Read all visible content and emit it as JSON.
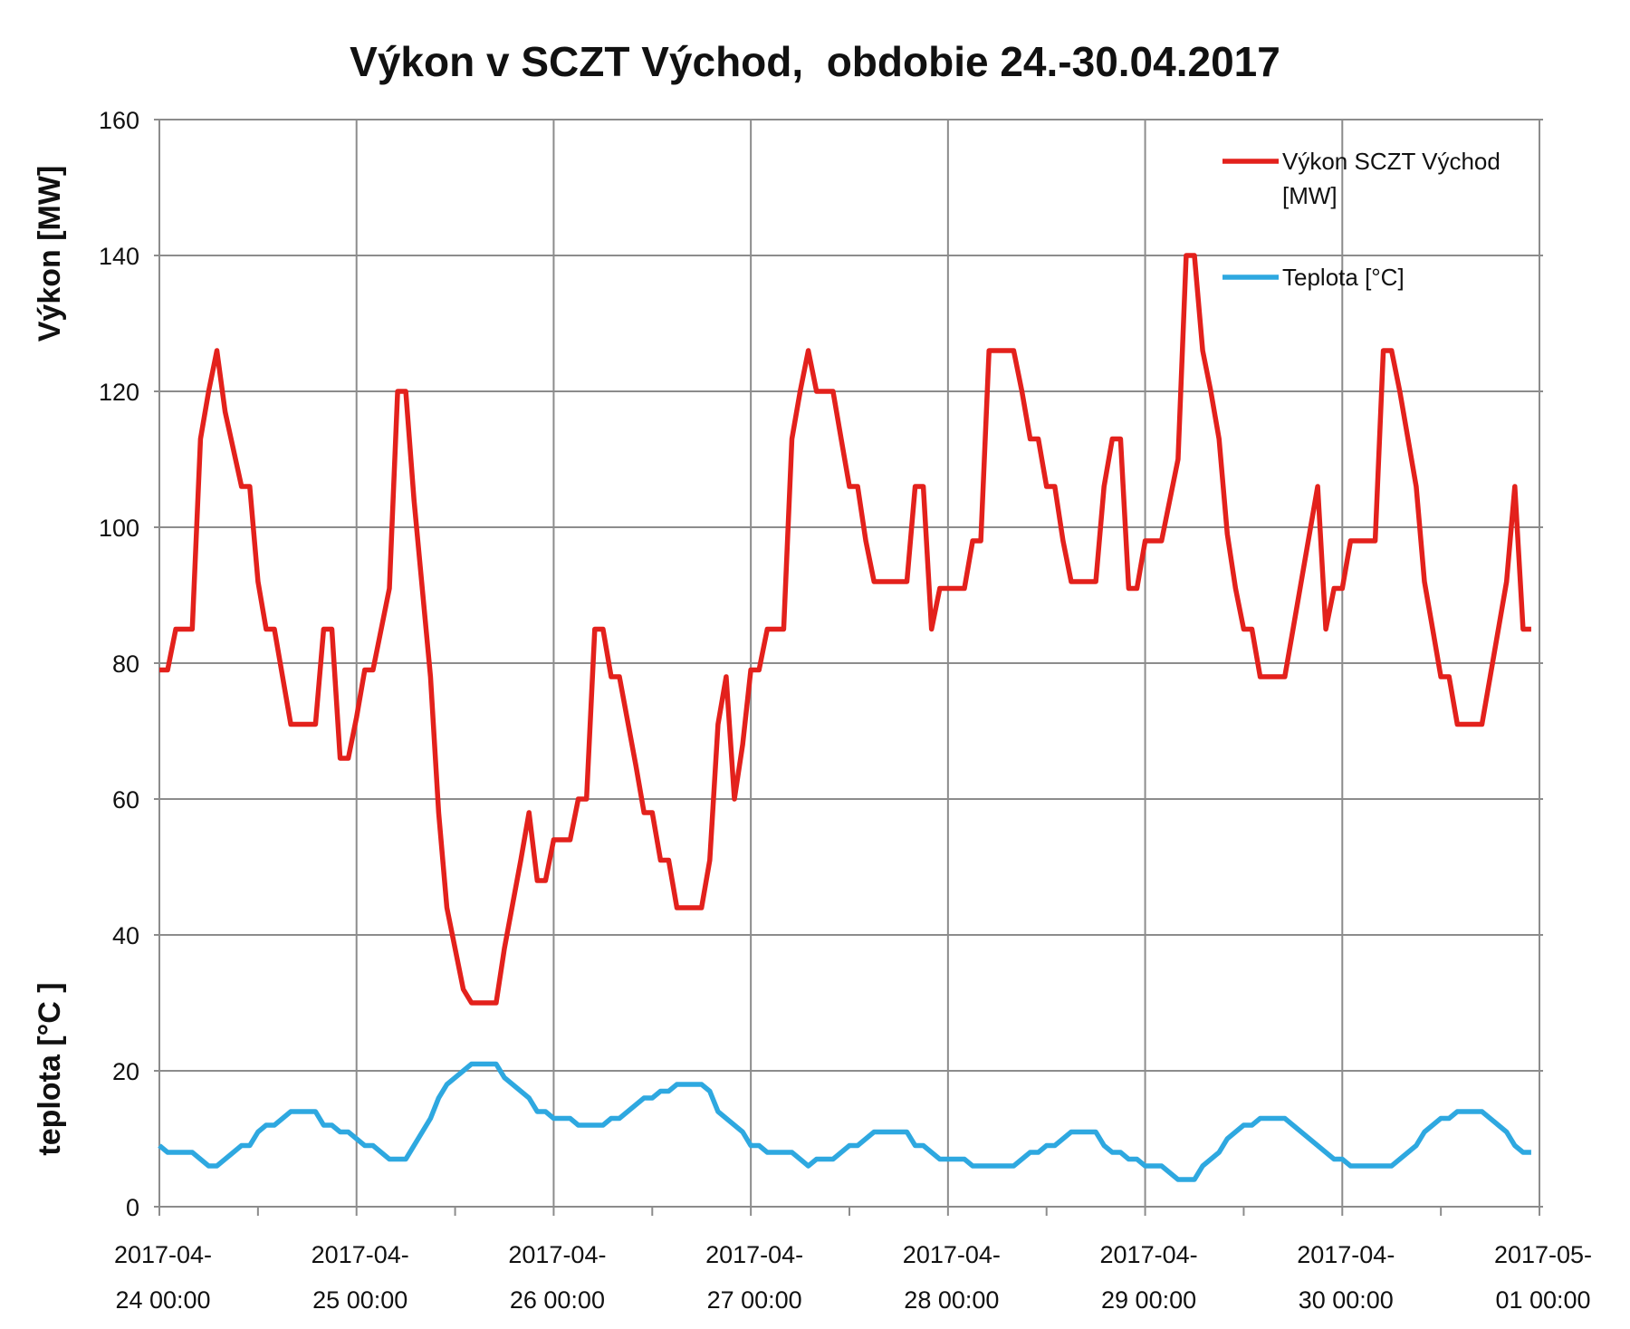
{
  "chart_data": {
    "type": "line",
    "title": "Výkon v SCZT Východ,  obdobie 24.-30.04.2017",
    "ylabel": "Výkon [MW]",
    "ylabel2": "teplota [°C ]",
    "ylim": [
      0,
      160
    ],
    "yticks": [
      "0",
      "20",
      "40",
      "60",
      "80",
      "100",
      "120",
      "140",
      "160"
    ],
    "xlim": [
      "2017-04-24 00:00",
      "2017-05-01 00:00"
    ],
    "xticks": [
      [
        "2017-04-",
        "24 00:00"
      ],
      [
        "2017-04-",
        "25 00:00"
      ],
      [
        "2017-04-",
        "26 00:00"
      ],
      [
        "2017-04-",
        "27 00:00"
      ],
      [
        "2017-04-",
        "28 00:00"
      ],
      [
        "2017-04-",
        "29 00:00"
      ],
      [
        "2017-04-",
        "30 00:00"
      ],
      [
        "2017-05-",
        "01 00:00"
      ]
    ],
    "grid": true,
    "legend_position": "top-right",
    "series": [
      {
        "name": "Výkon SCZT Východ [MW]",
        "legend_lines": [
          "Výkon SCZT Východ",
          "[MW]"
        ],
        "color": "#e3211c",
        "points": [
          [
            "2017-04-24 00:00",
            79
          ],
          [
            "2017-04-24 01:00",
            79
          ],
          [
            "2017-04-24 02:00",
            85
          ],
          [
            "2017-04-24 04:00",
            85
          ],
          [
            "2017-04-24 05:00",
            113
          ],
          [
            "2017-04-24 06:00",
            120
          ],
          [
            "2017-04-24 07:00",
            126
          ],
          [
            "2017-04-24 08:00",
            117
          ],
          [
            "2017-04-24 10:00",
            106
          ],
          [
            "2017-04-24 11:00",
            106
          ],
          [
            "2017-04-24 12:00",
            92
          ],
          [
            "2017-04-24 13:00",
            85
          ],
          [
            "2017-04-24 14:00",
            85
          ],
          [
            "2017-04-24 16:00",
            71
          ],
          [
            "2017-04-24 19:00",
            71
          ],
          [
            "2017-04-24 20:00",
            85
          ],
          [
            "2017-04-24 21:00",
            85
          ],
          [
            "2017-04-24 22:00",
            66
          ],
          [
            "2017-04-24 23:00",
            66
          ],
          [
            "2017-04-25 00:00",
            72
          ],
          [
            "2017-04-25 01:00",
            79
          ],
          [
            "2017-04-25 02:00",
            79
          ],
          [
            "2017-04-25 04:00",
            91
          ],
          [
            "2017-04-25 05:00",
            120
          ],
          [
            "2017-04-25 06:00",
            120
          ],
          [
            "2017-04-25 07:00",
            104
          ],
          [
            "2017-04-25 09:00",
            78
          ],
          [
            "2017-04-25 10:00",
            58
          ],
          [
            "2017-04-25 11:00",
            44
          ],
          [
            "2017-04-25 13:00",
            32
          ],
          [
            "2017-04-25 14:00",
            30
          ],
          [
            "2017-04-25 17:00",
            30
          ],
          [
            "2017-04-25 18:00",
            38
          ],
          [
            "2017-04-25 20:00",
            51
          ],
          [
            "2017-04-25 21:00",
            58
          ],
          [
            "2017-04-25 22:00",
            48
          ],
          [
            "2017-04-25 23:00",
            48
          ],
          [
            "2017-04-26 00:00",
            54
          ],
          [
            "2017-04-26 02:00",
            54
          ],
          [
            "2017-04-26 03:00",
            60
          ],
          [
            "2017-04-26 04:00",
            60
          ],
          [
            "2017-04-26 05:00",
            85
          ],
          [
            "2017-04-26 06:00",
            85
          ],
          [
            "2017-04-26 07:00",
            78
          ],
          [
            "2017-04-26 08:00",
            78
          ],
          [
            "2017-04-26 10:00",
            65
          ],
          [
            "2017-04-26 11:00",
            58
          ],
          [
            "2017-04-26 12:00",
            58
          ],
          [
            "2017-04-26 13:00",
            51
          ],
          [
            "2017-04-26 14:00",
            51
          ],
          [
            "2017-04-26 15:00",
            44
          ],
          [
            "2017-04-26 18:00",
            44
          ],
          [
            "2017-04-26 19:00",
            51
          ],
          [
            "2017-04-26 20:00",
            71
          ],
          [
            "2017-04-26 21:00",
            78
          ],
          [
            "2017-04-26 22:00",
            60
          ],
          [
            "2017-04-26 23:00",
            68
          ],
          [
            "2017-04-27 00:00",
            79
          ],
          [
            "2017-04-27 01:00",
            79
          ],
          [
            "2017-04-27 02:00",
            85
          ],
          [
            "2017-04-27 04:00",
            85
          ],
          [
            "2017-04-27 05:00",
            113
          ],
          [
            "2017-04-27 06:00",
            120
          ],
          [
            "2017-04-27 07:00",
            126
          ],
          [
            "2017-04-27 08:00",
            120
          ],
          [
            "2017-04-27 10:00",
            120
          ],
          [
            "2017-04-27 11:00",
            113
          ],
          [
            "2017-04-27 12:00",
            106
          ],
          [
            "2017-04-27 13:00",
            106
          ],
          [
            "2017-04-27 14:00",
            98
          ],
          [
            "2017-04-27 15:00",
            92
          ],
          [
            "2017-04-27 19:00",
            92
          ],
          [
            "2017-04-27 20:00",
            106
          ],
          [
            "2017-04-27 21:00",
            106
          ],
          [
            "2017-04-27 22:00",
            85
          ],
          [
            "2017-04-27 23:00",
            91
          ],
          [
            "2017-04-28 02:00",
            91
          ],
          [
            "2017-04-28 03:00",
            98
          ],
          [
            "2017-04-28 04:00",
            98
          ],
          [
            "2017-04-28 05:00",
            126
          ],
          [
            "2017-04-28 08:00",
            126
          ],
          [
            "2017-04-28 09:00",
            120
          ],
          [
            "2017-04-28 10:00",
            113
          ],
          [
            "2017-04-28 11:00",
            113
          ],
          [
            "2017-04-28 12:00",
            106
          ],
          [
            "2017-04-28 13:00",
            106
          ],
          [
            "2017-04-28 14:00",
            98
          ],
          [
            "2017-04-28 15:00",
            92
          ],
          [
            "2017-04-28 18:00",
            92
          ],
          [
            "2017-04-28 19:00",
            106
          ],
          [
            "2017-04-28 20:00",
            113
          ],
          [
            "2017-04-28 21:00",
            113
          ],
          [
            "2017-04-28 22:00",
            91
          ],
          [
            "2017-04-28 23:00",
            91
          ],
          [
            "2017-04-29 00:00",
            98
          ],
          [
            "2017-04-29 02:00",
            98
          ],
          [
            "2017-04-29 03:00",
            104
          ],
          [
            "2017-04-29 04:00",
            110
          ],
          [
            "2017-04-29 05:00",
            140
          ],
          [
            "2017-04-29 06:00",
            140
          ],
          [
            "2017-04-29 07:00",
            126
          ],
          [
            "2017-04-29 08:00",
            120
          ],
          [
            "2017-04-29 09:00",
            113
          ],
          [
            "2017-04-29 10:00",
            99
          ],
          [
            "2017-04-29 11:00",
            91
          ],
          [
            "2017-04-29 12:00",
            85
          ],
          [
            "2017-04-29 13:00",
            85
          ],
          [
            "2017-04-29 14:00",
            78
          ],
          [
            "2017-04-29 17:00",
            78
          ],
          [
            "2017-04-29 18:00",
            85
          ],
          [
            "2017-04-29 20:00",
            99
          ],
          [
            "2017-04-29 21:00",
            106
          ],
          [
            "2017-04-29 22:00",
            85
          ],
          [
            "2017-04-29 23:00",
            91
          ],
          [
            "2017-04-30 00:00",
            91
          ],
          [
            "2017-04-30 01:00",
            98
          ],
          [
            "2017-04-30 04:00",
            98
          ],
          [
            "2017-04-30 05:00",
            126
          ],
          [
            "2017-04-30 06:00",
            126
          ],
          [
            "2017-04-30 07:00",
            120
          ],
          [
            "2017-04-30 09:00",
            106
          ],
          [
            "2017-04-30 10:00",
            92
          ],
          [
            "2017-04-30 11:00",
            85
          ],
          [
            "2017-04-30 12:00",
            78
          ],
          [
            "2017-04-30 13:00",
            78
          ],
          [
            "2017-04-30 14:00",
            71
          ],
          [
            "2017-04-30 17:00",
            71
          ],
          [
            "2017-04-30 18:00",
            78
          ],
          [
            "2017-04-30 20:00",
            92
          ],
          [
            "2017-04-30 21:00",
            106
          ],
          [
            "2017-04-30 22:00",
            85
          ],
          [
            "2017-04-30 23:00",
            85
          ]
        ]
      },
      {
        "name": "Teplota [°C]",
        "legend_lines": [
          "Teplota [°C]"
        ],
        "color": "#2ea8e0",
        "points": [
          [
            "2017-04-24 00:00",
            9
          ],
          [
            "2017-04-24 01:00",
            8
          ],
          [
            "2017-04-24 04:00",
            8
          ],
          [
            "2017-04-24 06:00",
            6
          ],
          [
            "2017-04-24 07:00",
            6
          ],
          [
            "2017-04-24 10:00",
            9
          ],
          [
            "2017-04-24 11:00",
            9
          ],
          [
            "2017-04-24 12:00",
            11
          ],
          [
            "2017-04-24 13:00",
            12
          ],
          [
            "2017-04-24 14:00",
            12
          ],
          [
            "2017-04-24 16:00",
            14
          ],
          [
            "2017-04-24 19:00",
            14
          ],
          [
            "2017-04-24 20:00",
            12
          ],
          [
            "2017-04-24 21:00",
            12
          ],
          [
            "2017-04-24 22:00",
            11
          ],
          [
            "2017-04-24 23:00",
            11
          ],
          [
            "2017-04-25 01:00",
            9
          ],
          [
            "2017-04-25 02:00",
            9
          ],
          [
            "2017-04-25 04:00",
            7
          ],
          [
            "2017-04-25 06:00",
            7
          ],
          [
            "2017-04-25 09:00",
            13
          ],
          [
            "2017-04-25 10:00",
            16
          ],
          [
            "2017-04-25 11:00",
            18
          ],
          [
            "2017-04-25 14:00",
            21
          ],
          [
            "2017-04-25 17:00",
            21
          ],
          [
            "2017-04-25 18:00",
            19
          ],
          [
            "2017-04-25 21:00",
            16
          ],
          [
            "2017-04-25 22:00",
            14
          ],
          [
            "2017-04-25 23:00",
            14
          ],
          [
            "2017-04-26 00:00",
            13
          ],
          [
            "2017-04-26 02:00",
            13
          ],
          [
            "2017-04-26 03:00",
            12
          ],
          [
            "2017-04-26 06:00",
            12
          ],
          [
            "2017-04-26 07:00",
            13
          ],
          [
            "2017-04-26 08:00",
            13
          ],
          [
            "2017-04-26 11:00",
            16
          ],
          [
            "2017-04-26 12:00",
            16
          ],
          [
            "2017-04-26 13:00",
            17
          ],
          [
            "2017-04-26 14:00",
            17
          ],
          [
            "2017-04-26 15:00",
            18
          ],
          [
            "2017-04-26 18:00",
            18
          ],
          [
            "2017-04-26 19:00",
            17
          ],
          [
            "2017-04-26 20:00",
            14
          ],
          [
            "2017-04-26 23:00",
            11
          ],
          [
            "2017-04-27 00:00",
            9
          ],
          [
            "2017-04-27 01:00",
            9
          ],
          [
            "2017-04-27 02:00",
            8
          ],
          [
            "2017-04-27 05:00",
            8
          ],
          [
            "2017-04-27 07:00",
            6
          ],
          [
            "2017-04-27 08:00",
            7
          ],
          [
            "2017-04-27 10:00",
            7
          ],
          [
            "2017-04-27 12:00",
            9
          ],
          [
            "2017-04-27 13:00",
            9
          ],
          [
            "2017-04-27 15:00",
            11
          ],
          [
            "2017-04-27 19:00",
            11
          ],
          [
            "2017-04-27 20:00",
            9
          ],
          [
            "2017-04-27 21:00",
            9
          ],
          [
            "2017-04-27 23:00",
            7
          ],
          [
            "2017-04-28 02:00",
            7
          ],
          [
            "2017-04-28 03:00",
            6
          ],
          [
            "2017-04-28 08:00",
            6
          ],
          [
            "2017-04-28 10:00",
            8
          ],
          [
            "2017-04-28 11:00",
            8
          ],
          [
            "2017-04-28 12:00",
            9
          ],
          [
            "2017-04-28 13:00",
            9
          ],
          [
            "2017-04-28 15:00",
            11
          ],
          [
            "2017-04-28 18:00",
            11
          ],
          [
            "2017-04-28 19:00",
            9
          ],
          [
            "2017-04-28 20:00",
            8
          ],
          [
            "2017-04-28 21:00",
            8
          ],
          [
            "2017-04-28 22:00",
            7
          ],
          [
            "2017-04-28 23:00",
            7
          ],
          [
            "2017-04-29 00:00",
            6
          ],
          [
            "2017-04-29 02:00",
            6
          ],
          [
            "2017-04-29 04:00",
            4
          ],
          [
            "2017-04-29 06:00",
            4
          ],
          [
            "2017-04-29 07:00",
            6
          ],
          [
            "2017-04-29 09:00",
            8
          ],
          [
            "2017-04-29 10:00",
            10
          ],
          [
            "2017-04-29 12:00",
            12
          ],
          [
            "2017-04-29 13:00",
            12
          ],
          [
            "2017-04-29 14:00",
            13
          ],
          [
            "2017-04-29 17:00",
            13
          ],
          [
            "2017-04-29 22:00",
            8
          ],
          [
            "2017-04-29 23:00",
            7
          ],
          [
            "2017-04-30 00:00",
            7
          ],
          [
            "2017-04-30 01:00",
            6
          ],
          [
            "2017-04-30 06:00",
            6
          ],
          [
            "2017-04-30 09:00",
            9
          ],
          [
            "2017-04-30 10:00",
            11
          ],
          [
            "2017-04-30 12:00",
            13
          ],
          [
            "2017-04-30 13:00",
            13
          ],
          [
            "2017-04-30 14:00",
            14
          ],
          [
            "2017-04-30 17:00",
            14
          ],
          [
            "2017-04-30 20:00",
            11
          ],
          [
            "2017-04-30 21:00",
            9
          ],
          [
            "2017-04-30 22:00",
            8
          ],
          [
            "2017-04-30 23:00",
            8
          ]
        ]
      }
    ]
  }
}
